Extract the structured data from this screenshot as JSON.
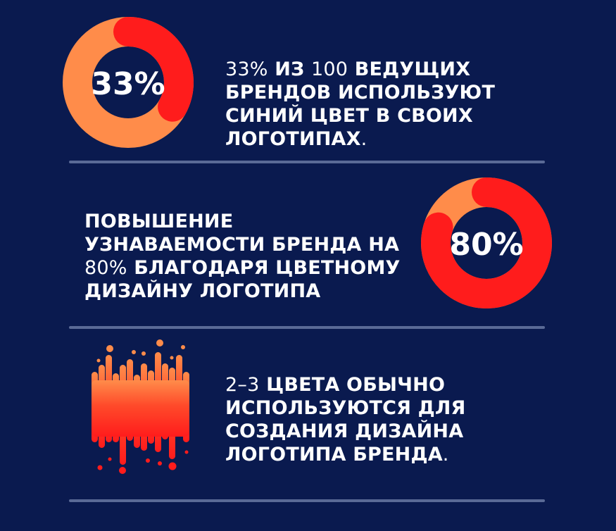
{
  "colors": {
    "background": "#0a1a4f",
    "ring_base": "#ff8c4a",
    "ring_fill": "#ff1c1c",
    "divider": "#5a6a96",
    "text": "#ffffff"
  },
  "stats": [
    {
      "percent_label": "33%",
      "value": 33,
      "text_num": "33%",
      "text_mid": " ИЗ ",
      "text_num2": "100",
      "text_rest": " ВЕДУЩИХ БРЕНДОВ ИСПОЛЬЗУЮТ СИНИЙ ЦВЕТ В СВОИХ ЛОГОТИПАХ",
      "text_end": "."
    },
    {
      "percent_label": "80%",
      "value": 80,
      "text_pre": "ПОВЫШЕНИЕ УЗНАВАЕМОСТИ БРЕНДА НА ",
      "text_num": "80%",
      "text_rest": " БЛАГОДАРЯ ЦВЕТНОМУ ДИЗАЙНУ ЛОГОТИПА"
    },
    {
      "icon": "paint-drip-icon",
      "text_num": "2–3",
      "text_rest": " ЦВЕТА ОБЫЧНО ИСПОЛЬЗУЮТСЯ ДЛЯ СОЗДАНИЯ ДИЗАЙНА ЛОГОТИПА БРЕНДА",
      "text_end": "."
    }
  ]
}
